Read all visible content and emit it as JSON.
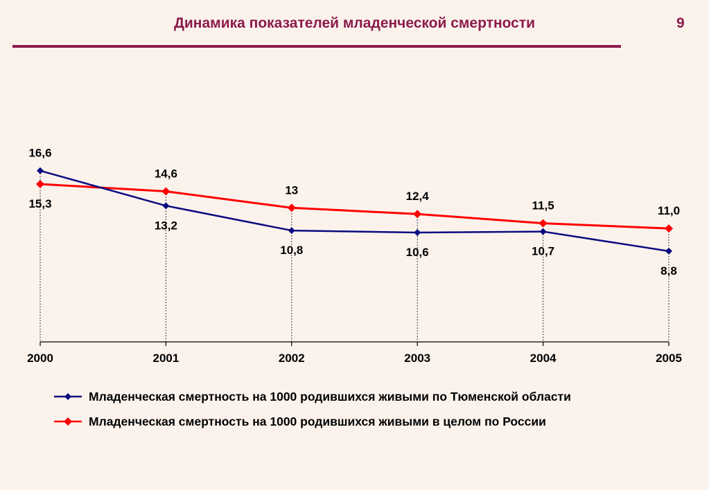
{
  "header": {
    "title": "Динамика показателей младенческой  смертности",
    "page_number": "9"
  },
  "colors": {
    "background": "#FBF2EC",
    "title": "#8B1A4A",
    "series_tyumen": "#0A0A80",
    "series_russia": "#FF0000"
  },
  "chart_data": {
    "type": "line",
    "title": "",
    "xlabel": "",
    "ylabel": "",
    "x": [
      "2000",
      "2001",
      "2002",
      "2003",
      "2004",
      "2005"
    ],
    "ylim": [
      0,
      18.5
    ],
    "grid": "vertical dotted drop lines",
    "legend_position": "bottom",
    "series": [
      {
        "name": "Младенческая смертность на 1000 родившихся живыми по Тюменской области",
        "color": "#0A0A80",
        "marker": "diamond",
        "values": [
          16.6,
          13.2,
          10.8,
          10.6,
          10.7,
          8.8
        ],
        "labels": [
          "16,6",
          "13,2",
          "10,8",
          "10,6",
          "10,7",
          "8,8"
        ],
        "label_side": [
          "above",
          "below",
          "below",
          "below",
          "below",
          "below"
        ]
      },
      {
        "name": "Младенческая смертность на 1000 родившихся живыми в целом по России",
        "color": "#FF0000",
        "marker": "diamond",
        "values": [
          15.3,
          14.6,
          13.0,
          12.4,
          11.5,
          11.0
        ],
        "labels": [
          "15,3",
          "14,6",
          "13",
          "12,4",
          "11,5",
          "11,0"
        ],
        "label_side": [
          "below",
          "above",
          "above",
          "above",
          "above",
          "above"
        ]
      }
    ]
  }
}
